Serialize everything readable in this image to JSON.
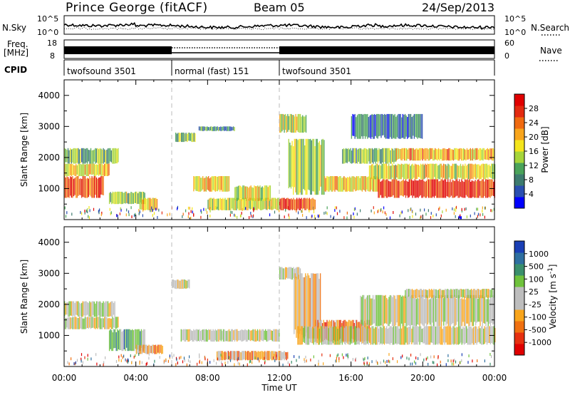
{
  "header": {
    "station": "Prince George (fitACF)",
    "beam": "Beam 05",
    "date": "24/Sep/2013"
  },
  "noise_panel": {
    "left_label": "N.Sky",
    "right_label": "N.Search",
    "left_ticks": [
      "10^5",
      "10^0"
    ],
    "right_ticks": [
      "10^5",
      "10^0"
    ]
  },
  "freq_panel": {
    "left_label_line1": "Freq.",
    "left_label_line2": "[MHz]",
    "left_ticks": [
      "18",
      "8"
    ],
    "right_label": "Nave",
    "right_ticks": [
      "60",
      "0"
    ]
  },
  "cpid": {
    "label": "CPID",
    "modes": [
      {
        "name": "twofsound 3501",
        "start_hour": 0,
        "end_hour": 6
      },
      {
        "name": "normal (fast) 151",
        "start_hour": 6,
        "end_hour": 12
      },
      {
        "name": "twofsound 3501",
        "start_hour": 12,
        "end_hour": 24
      }
    ]
  },
  "x_axis": {
    "label": "Time UT",
    "ticks": [
      "00:00",
      "04:00",
      "08:00",
      "12:00",
      "16:00",
      "20:00",
      "00:00"
    ]
  },
  "chart_data": [
    {
      "type": "heatmap",
      "title": "Power",
      "xlabel": "Time UT",
      "ylabel": "Slant Range [km]",
      "x_unit": "hours UT",
      "xlim": [
        0,
        24
      ],
      "ylim": [
        0,
        4500
      ],
      "yticks": [
        "1000",
        "2000",
        "3000",
        "4000"
      ],
      "colorbar": {
        "label": "Power [dB]",
        "ticks": [
          "4",
          "8",
          "12",
          "16",
          "20",
          "24",
          "28"
        ],
        "colors": [
          "#0000ff",
          "#2a4fb0",
          "#3d7b6f",
          "#4aa35a",
          "#a6d53a",
          "#f4e51c",
          "#f8a51c",
          "#f06a10",
          "#e32a10",
          "#e00000"
        ]
      },
      "echo_regions": [
        {
          "x": [
            0.0,
            2.2
          ],
          "y": [
            700,
            1400
          ],
          "level": 0.8
        },
        {
          "x": [
            0.0,
            2.5
          ],
          "y": [
            1400,
            1800
          ],
          "level": 0.6
        },
        {
          "x": [
            0.0,
            3.0
          ],
          "y": [
            1800,
            2300
          ],
          "level": 0.35
        },
        {
          "x": [
            2.5,
            4.5
          ],
          "y": [
            500,
            900
          ],
          "level": 0.45
        },
        {
          "x": [
            4.2,
            5.2
          ],
          "y": [
            300,
            700
          ],
          "level": 0.6
        },
        {
          "x": [
            6.2,
            7.3
          ],
          "y": [
            2500,
            2800
          ],
          "level": 0.4
        },
        {
          "x": [
            7.5,
            9.5
          ],
          "y": [
            2850,
            3000
          ],
          "level": 0.25
        },
        {
          "x": [
            7.2,
            9.2
          ],
          "y": [
            900,
            1400
          ],
          "level": 0.6
        },
        {
          "x": [
            8.0,
            12.0
          ],
          "y": [
            300,
            700
          ],
          "level": 0.5
        },
        {
          "x": [
            9.5,
            11.5
          ],
          "y": [
            600,
            1100
          ],
          "level": 0.55
        },
        {
          "x": [
            12.0,
            13.5
          ],
          "y": [
            2800,
            3400
          ],
          "level": 0.5
        },
        {
          "x": [
            12.5,
            14.5
          ],
          "y": [
            800,
            2600
          ],
          "level": 0.45
        },
        {
          "x": [
            12.0,
            14.0
          ],
          "y": [
            300,
            700
          ],
          "level": 0.85
        },
        {
          "x": [
            14.5,
            17.5
          ],
          "y": [
            900,
            1400
          ],
          "level": 0.6
        },
        {
          "x": [
            15.5,
            18.5
          ],
          "y": [
            1800,
            2300
          ],
          "level": 0.35
        },
        {
          "x": [
            17.5,
            24.0
          ],
          "y": [
            700,
            1300
          ],
          "level": 0.9
        },
        {
          "x": [
            17.0,
            24.0
          ],
          "y": [
            1300,
            1800
          ],
          "level": 0.55
        },
        {
          "x": [
            18.5,
            24.0
          ],
          "y": [
            1900,
            2300
          ],
          "level": 0.65
        },
        {
          "x": [
            16.0,
            20.0
          ],
          "y": [
            2600,
            3400
          ],
          "level": 0.2
        }
      ]
    },
    {
      "type": "heatmap",
      "title": "Velocity",
      "xlabel": "Time UT",
      "ylabel": "Slant Range [km]",
      "x_unit": "hours UT",
      "xlim": [
        0,
        24
      ],
      "ylim": [
        0,
        4500
      ],
      "yticks": [
        "1000",
        "2000",
        "3000",
        "4000"
      ],
      "colorbar": {
        "label": "Velocity [m s^-1]",
        "ticks": [
          "1000",
          "500",
          "100",
          "25",
          "-25",
          "-100",
          "-500",
          "-1000"
        ],
        "colors": [
          "#1a3fb5",
          "#2e6fa0",
          "#3a8f6c",
          "#6fc23c",
          "#bdbdbd",
          "#bdbdbd",
          "#f8a51c",
          "#f07010",
          "#e63010",
          "#e00000"
        ]
      },
      "echo_regions": [
        {
          "x": [
            0.0,
            3.0
          ],
          "y": [
            1200,
            1600
          ],
          "level": 0.5
        },
        {
          "x": [
            0.0,
            2.8
          ],
          "y": [
            1600,
            2100
          ],
          "level": 0.52
        },
        {
          "x": [
            2.5,
            4.5
          ],
          "y": [
            500,
            1200
          ],
          "level": 0.75
        },
        {
          "x": [
            4.0,
            5.5
          ],
          "y": [
            400,
            700
          ],
          "level": 0.3
        },
        {
          "x": [
            6.0,
            7.0
          ],
          "y": [
            2500,
            2800
          ],
          "level": 0.5
        },
        {
          "x": [
            6.5,
            12.0
          ],
          "y": [
            800,
            1200
          ],
          "level": 0.5
        },
        {
          "x": [
            8.5,
            12.5
          ],
          "y": [
            200,
            500
          ],
          "level": 0.3
        },
        {
          "x": [
            12.0,
            13.2
          ],
          "y": [
            2800,
            3200
          ],
          "level": 0.5
        },
        {
          "x": [
            12.8,
            14.3
          ],
          "y": [
            900,
            3000
          ],
          "level": 0.35
        },
        {
          "x": [
            14.0,
            17.0
          ],
          "y": [
            800,
            1500
          ],
          "level": 0.25
        },
        {
          "x": [
            13.0,
            24.0
          ],
          "y": [
            700,
            1300
          ],
          "level": 0.5
        },
        {
          "x": [
            16.5,
            24.0
          ],
          "y": [
            1300,
            2300
          ],
          "level": 0.5
        },
        {
          "x": [
            19.0,
            24.0
          ],
          "y": [
            2200,
            2500
          ],
          "level": 0.5
        }
      ]
    }
  ]
}
